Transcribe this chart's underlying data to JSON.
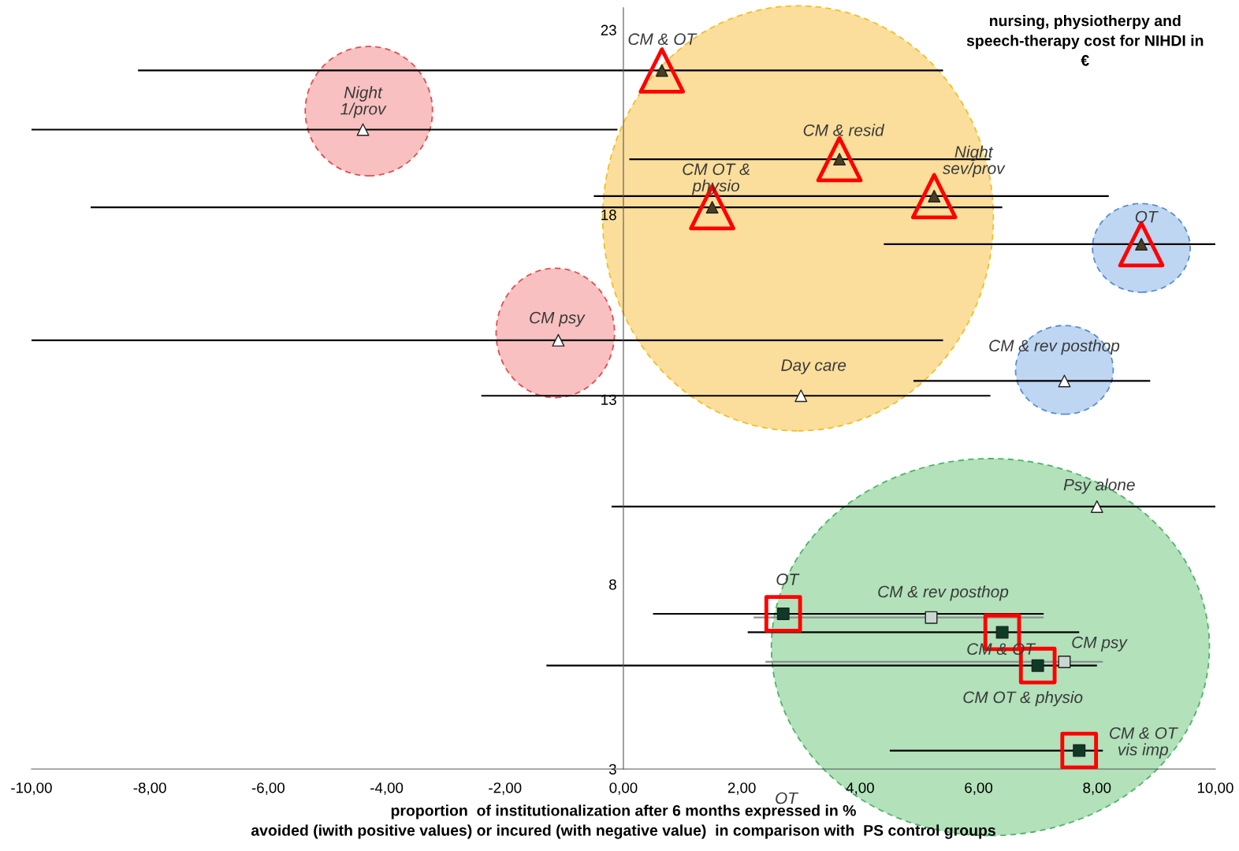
{
  "chart_data": {
    "type": "scatter",
    "xlabel": "proportion  of institutionalization after 6 months expressed in %\navoided (iwith positive values) or incured (with negative value)  in comparison with  PS control groups",
    "ylabel": "nursing, physiotherpy and\nspeech-therapy cost for NIHDI in\n€",
    "xlim": [
      -10,
      10
    ],
    "ylim": [
      3,
      23.6
    ],
    "xticks": [
      {
        "value": -10,
        "label": "-10,00"
      },
      {
        "value": -8,
        "label": "-8,00"
      },
      {
        "value": -6,
        "label": "-6,00"
      },
      {
        "value": -4,
        "label": "-4,00"
      },
      {
        "value": -2,
        "label": "-2,00"
      },
      {
        "value": 0,
        "label": "0,00"
      },
      {
        "value": 2,
        "label": "2,00"
      },
      {
        "value": 4,
        "label": "4,00"
      },
      {
        "value": 6,
        "label": "6,00"
      },
      {
        "value": 8,
        "label": "8,00"
      },
      {
        "value": 10,
        "label": "10,00"
      }
    ],
    "yticks": [
      3,
      8,
      13,
      18,
      23
    ],
    "grid": false,
    "legend": false,
    "series": [
      {
        "marker": "triangle",
        "color": "#ffffff",
        "x": [
          -4.4,
          -1.1,
          7.45,
          3.0,
          8.0
        ],
        "values": [
          20.3,
          14.6,
          13.5,
          13.1,
          10.1
        ],
        "xerrors": [
          [
            -10,
            -0.1
          ],
          [
            -10,
            5.4
          ],
          [
            4.9,
            8.9
          ],
          [
            -2.4,
            6.2
          ],
          [
            -0.2,
            10
          ]
        ]
      },
      {
        "marker": "triangle",
        "color": "#4a4020",
        "x": [
          0.65,
          3.65,
          5.25,
          1.5,
          8.75
        ],
        "values": [
          21.9,
          19.5,
          18.5,
          18.2,
          17.2
        ],
        "xerrors": [
          [
            -8.2,
            5.4
          ],
          [
            0.1,
            6.2
          ],
          [
            -0.5,
            8.2
          ],
          [
            -9.0,
            6.4
          ],
          [
            4.4,
            10
          ]
        ]
      },
      {
        "marker": "square",
        "color": "#0d3b26",
        "x": [
          2.7,
          6.4,
          7.0,
          7.7
        ],
        "values": [
          7.2,
          6.7,
          5.8,
          3.5
        ],
        "xerrors": [
          [
            0.5,
            7.1
          ],
          [
            2.1,
            7.7
          ],
          [
            -1.3,
            8.0
          ],
          [
            4.5,
            8.1
          ]
        ]
      },
      {
        "marker": "square",
        "color": "#c8d8d0",
        "x": [
          5.2,
          7.45
        ],
        "values": [
          7.1,
          5.9
        ],
        "xerrors": [
          [
            2.2,
            7.1
          ],
          [
            2.4,
            8.1
          ]
        ]
      }
    ],
    "annotations": [
      {
        "text": "CM & OT",
        "x": 0.65,
        "y": 21.9
      },
      {
        "text": "Night\n1/prov",
        "x": -4.4,
        "y": 20.3
      },
      {
        "text": "CM & resid",
        "x": 3.65,
        "y": 19.5
      },
      {
        "text": "Night\nsev/prov",
        "x": 5.25,
        "y": 18.5
      },
      {
        "text": "CM OT &\nphysio",
        "x": 1.5,
        "y": 18.2
      },
      {
        "text": "OT",
        "x": 8.75,
        "y": 17.2
      },
      {
        "text": "CM psy",
        "x": -1.1,
        "y": 14.6
      },
      {
        "text": "CM & rev posthop",
        "x": 7.45,
        "y": 13.5
      },
      {
        "text": "Day care",
        "x": 3.0,
        "y": 13.1
      },
      {
        "text": "Psy alone",
        "x": 8.0,
        "y": 10.1
      },
      {
        "text": "OT",
        "x": 2.7,
        "y": 7.2
      },
      {
        "text": "CM & rev posthop",
        "x": 5.2,
        "y": 7.1
      },
      {
        "text": "CM psy",
        "x": 7.45,
        "y": 5.9
      },
      {
        "text": "CM & OT",
        "x": 6.4,
        "y": 6.7
      },
      {
        "text": "CM OT & physio",
        "x": 7.0,
        "y": 5.8
      },
      {
        "text": "CM & OT\nvis imp",
        "x": 7.7,
        "y": 3.5
      },
      "OT"
    ]
  }
}
